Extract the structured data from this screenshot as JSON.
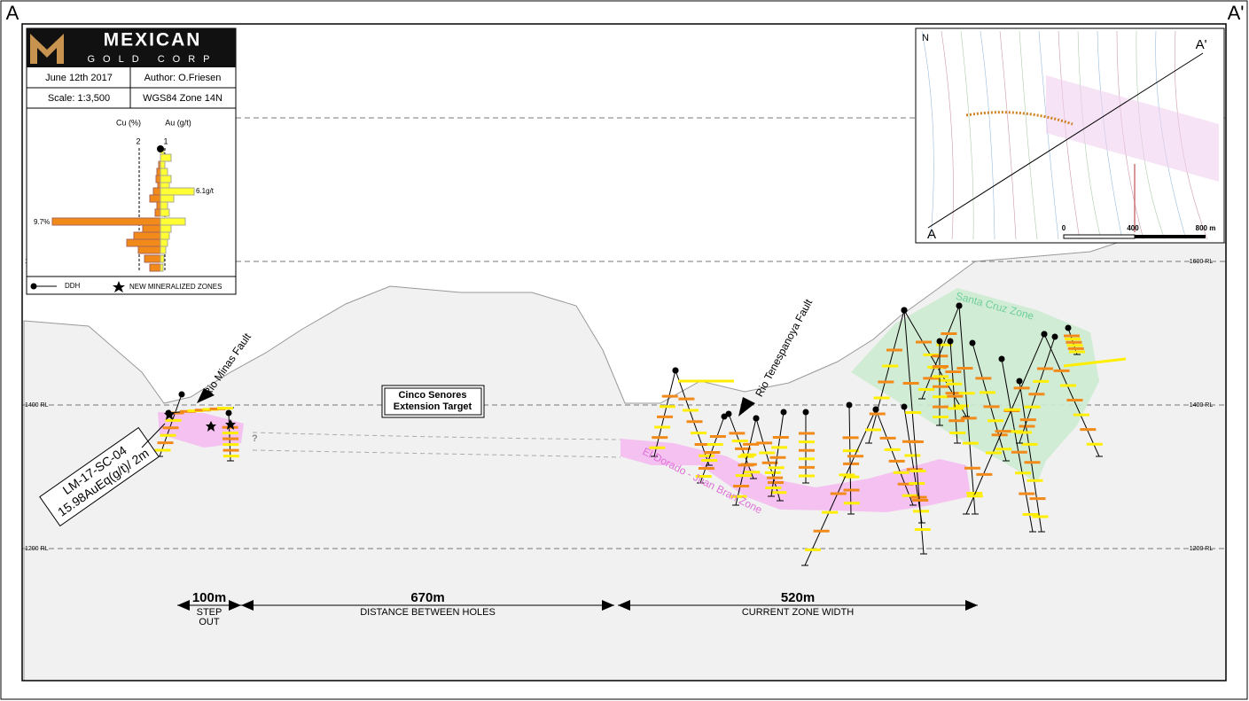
{
  "corners": {
    "left": "A",
    "right": "A'"
  },
  "logo": {
    "name": "MEXICAN",
    "sub": "GOLD CORP"
  },
  "info": {
    "date": "June 12th 2017",
    "author": "Author: O.Friesen",
    "scale": "Scale: 1:3,500",
    "projection": "WGS84 Zone 14N"
  },
  "histogram": {
    "cu_label": "Cu (%)",
    "au_label": "Au (g/t)",
    "cu_tick": "2",
    "au_tick": "1",
    "au_max": "6.1g/t",
    "cu_max": "9.7%"
  },
  "legend": {
    "ddh": "DDH",
    "star": "NEW MINERALIZED ZONES"
  },
  "levels": [
    "1600 RL",
    "1400 RL",
    "1200 RL"
  ],
  "faults": [
    "Rio Minas Fault",
    "Rio Tenespanoya Fault"
  ],
  "target": [
    "Cinco Senores",
    "Extension Target"
  ],
  "hole": {
    "id": "LM-17-SC-04",
    "result": "15.98AuEq(g/t)/ 2m"
  },
  "question": "?",
  "zones": [
    "Santa Cruz Zone",
    "El Dorado - Juan Bran Zone"
  ],
  "dimensions": [
    {
      "value": "100m",
      "label": [
        "STEP",
        "OUT"
      ]
    },
    {
      "value": "670m",
      "label": [
        "DISTANCE BETWEEN HOLES"
      ]
    },
    {
      "value": "520m",
      "label": [
        "CURRENT ZONE WIDTH"
      ]
    }
  ],
  "inset": {
    "north": "N",
    "a": "A",
    "a_prime": "A'",
    "scale": [
      "0",
      "400",
      "800 m"
    ]
  }
}
